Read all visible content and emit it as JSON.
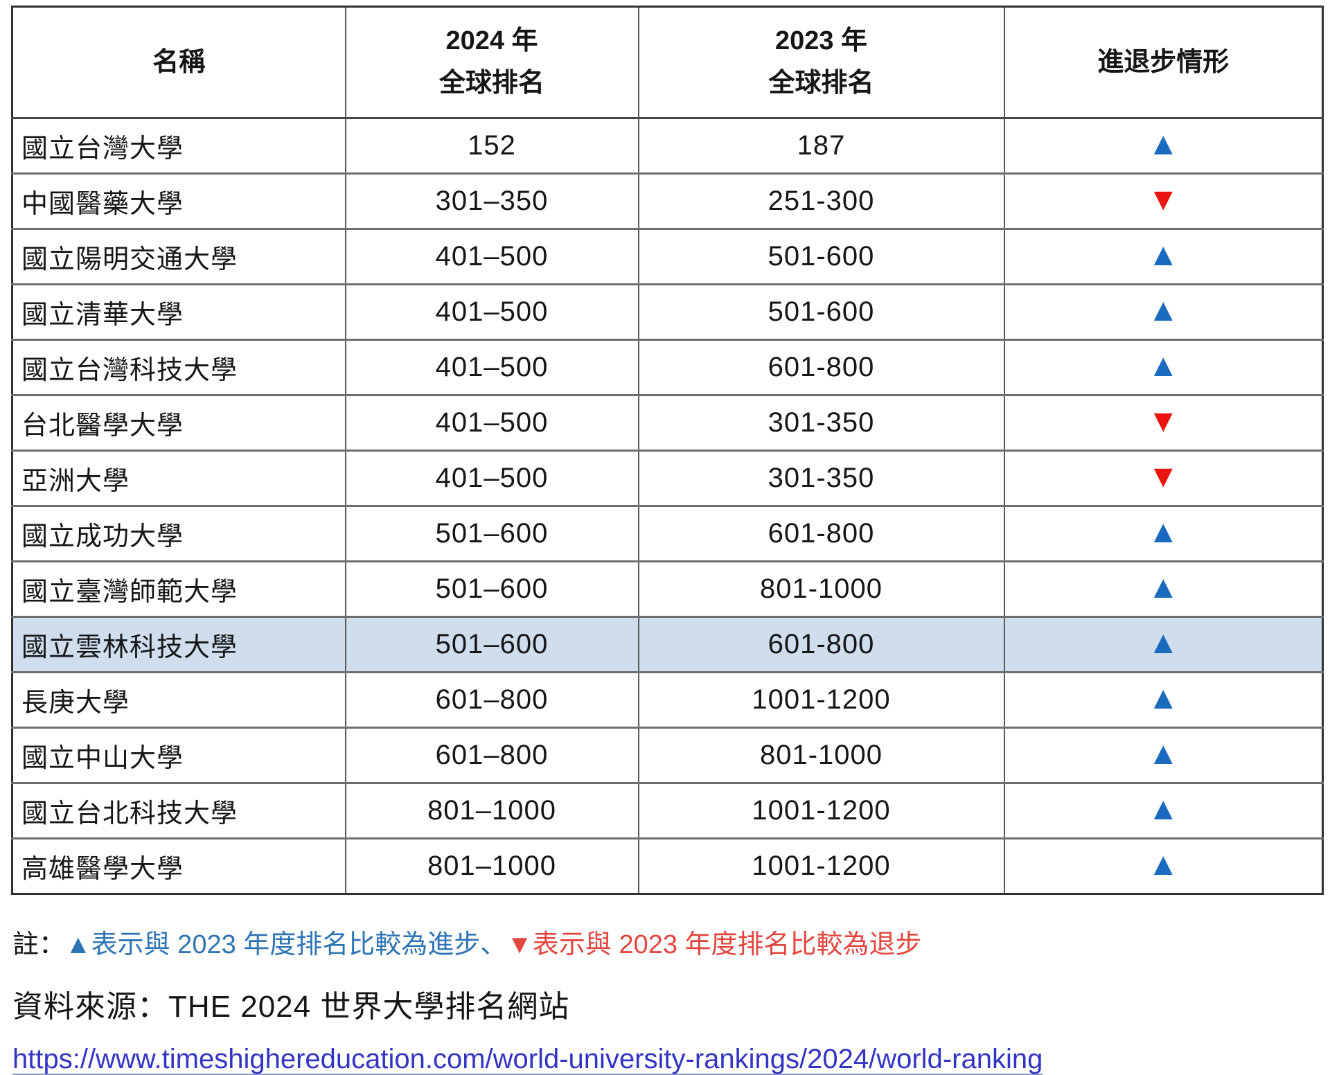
{
  "table": {
    "header": {
      "name": "名稱",
      "y2024_line1": "2024 年",
      "y2024_line2": "全球排名",
      "y2023_line1": "2023 年",
      "y2023_line2": "全球排名",
      "trend": "進退步情形"
    },
    "rows": [
      {
        "name": "國立台灣大學",
        "rank_2024": "152",
        "rank_2023": "187",
        "trend": "up",
        "arrow": "▲",
        "highlighted": false
      },
      {
        "name": "中國醫藥大學",
        "rank_2024": "301–350",
        "rank_2023": "251-300",
        "trend": "down",
        "arrow": "▼",
        "highlighted": false
      },
      {
        "name": "國立陽明交通大學",
        "rank_2024": "401–500",
        "rank_2023": "501-600",
        "trend": "up",
        "arrow": "▲",
        "highlighted": false
      },
      {
        "name": "國立清華大學",
        "rank_2024": "401–500",
        "rank_2023": "501-600",
        "trend": "up",
        "arrow": "▲",
        "highlighted": false
      },
      {
        "name": "國立台灣科技大學",
        "rank_2024": "401–500",
        "rank_2023": "601-800",
        "trend": "up",
        "arrow": "▲",
        "highlighted": false
      },
      {
        "name": "台北醫學大學",
        "rank_2024": "401–500",
        "rank_2023": "301-350",
        "trend": "down",
        "arrow": "▼",
        "highlighted": false
      },
      {
        "name": "亞洲大學",
        "rank_2024": "401–500",
        "rank_2023": "301-350",
        "trend": "down",
        "arrow": "▼",
        "highlighted": false
      },
      {
        "name": "國立成功大學",
        "rank_2024": "501–600",
        "rank_2023": "601-800",
        "trend": "up",
        "arrow": "▲",
        "highlighted": false
      },
      {
        "name": "國立臺灣師範大學",
        "rank_2024": "501–600",
        "rank_2023": "801-1000",
        "trend": "up",
        "arrow": "▲",
        "highlighted": false
      },
      {
        "name": "國立雲林科技大學",
        "rank_2024": "501–600",
        "rank_2023": "601-800",
        "trend": "up",
        "arrow": "▲",
        "highlighted": true
      },
      {
        "name": "長庚大學",
        "rank_2024": "601–800",
        "rank_2023": "1001-1200",
        "trend": "up",
        "arrow": "▲",
        "highlighted": false
      },
      {
        "name": "國立中山大學",
        "rank_2024": "601–800",
        "rank_2023": "801-1000",
        "trend": "up",
        "arrow": "▲",
        "highlighted": false
      },
      {
        "name": "國立台北科技大學",
        "rank_2024": "801–1000",
        "rank_2023": "1001-1200",
        "trend": "up",
        "arrow": "▲",
        "highlighted": false
      },
      {
        "name": "高雄醫學大學",
        "rank_2024": "801–1000",
        "rank_2023": "1001-1200",
        "trend": "up",
        "arrow": "▲",
        "highlighted": false
      }
    ]
  },
  "footer": {
    "note_prefix": "註：",
    "note_up": "▲表示與 2023 年度排名比較為進步、",
    "note_down": "▼表示與 2023 年度排名比較為退步",
    "source": "資料來源：THE 2024 世界大學排名網站",
    "url": "https://www.timeshighereducation.com/world-university-rankings/2024/world-ranking"
  },
  "colors": {
    "up": "#1a6bc0",
    "down": "#ec1410",
    "note-blue": "#2e74b5",
    "note-red": "#e2463e",
    "link": "#3434c4",
    "hl-bg": "#cfdded"
  }
}
